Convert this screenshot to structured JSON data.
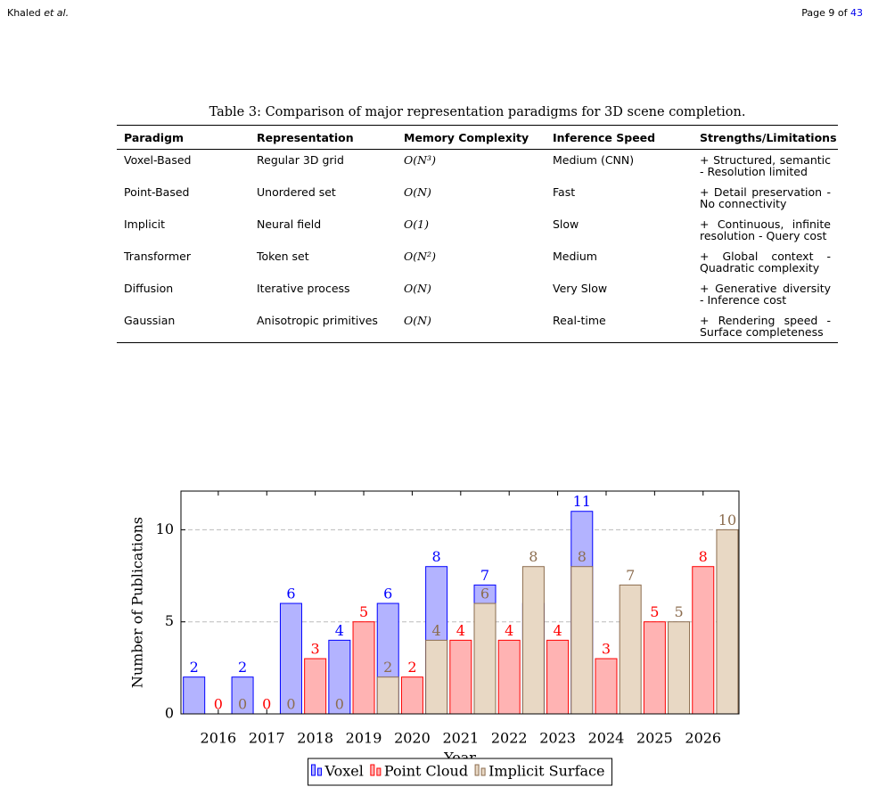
{
  "header": {
    "author": "Khaled",
    "author_suffix": "et al.",
    "page_prefix": "Page 9 of",
    "page_total": "43"
  },
  "table": {
    "caption": "Table 3: Comparison of major representation paradigms for 3D scene completion.",
    "columns": [
      "Paradigm",
      "Representation",
      "Memory Complexity",
      "Inference Speed",
      "Strengths/Limitations"
    ],
    "rows": [
      [
        "Voxel-Based",
        "Regular 3D grid",
        "O(N³)",
        "Medium (CNN)",
        "+ Structured, semantic - Resolution limited"
      ],
      [
        "Point-Based",
        "Unordered set",
        "O(N)",
        "Fast",
        "+ Detail preservation - No connectivity"
      ],
      [
        "Implicit",
        "Neural field",
        "O(1)",
        "Slow",
        "+ Continuous, infinite resolution - Query cost"
      ],
      [
        "Transformer",
        "Token set",
        "O(N²)",
        "Medium",
        "+ Global context - Quadratic complexity"
      ],
      [
        "Diffusion",
        "Iterative process",
        "O(N)",
        "Very Slow",
        "+ Generative diversity - Inference cost"
      ],
      [
        "Gaussian",
        "Anisotropic primitives",
        "O(N)",
        "Real-time",
        "+ Rendering speed - Surface completeness"
      ]
    ]
  },
  "chart_data": {
    "type": "bar",
    "xlabel": "Year",
    "ylabel": "Number of Publications",
    "x": [
      2016,
      2017,
      2018,
      2019,
      2020,
      2021,
      2022,
      2023,
      2024,
      2025,
      2026
    ],
    "xlim": [
      2015.23,
      2026.74
    ],
    "xticks": [
      2016,
      2017,
      2018,
      2019,
      2020,
      2021,
      2022,
      2023,
      2024,
      2025,
      2026
    ],
    "ylim": [
      0,
      12.1
    ],
    "yticks": [
      0,
      5,
      10
    ],
    "grid": true,
    "legend": "below",
    "series": [
      {
        "name": "Voxel",
        "color": "#0000ff",
        "fill": "#b3b3ff",
        "values": [
          2,
          2,
          6,
          4,
          6,
          8,
          7,
          6,
          11,
          null,
          null
        ]
      },
      {
        "name": "Point Cloud",
        "color": "#ff0000",
        "fill": "#ffb3b3",
        "values": [
          0,
          0,
          3,
          5,
          2,
          4,
          4,
          4,
          3,
          5,
          8
        ]
      },
      {
        "name": "Implicit Surface",
        "color": "#8c6d4f",
        "fill": "#e8d8c4",
        "values": [
          0,
          0,
          0,
          2,
          4,
          6,
          8,
          8,
          7,
          5,
          10
        ]
      }
    ]
  }
}
